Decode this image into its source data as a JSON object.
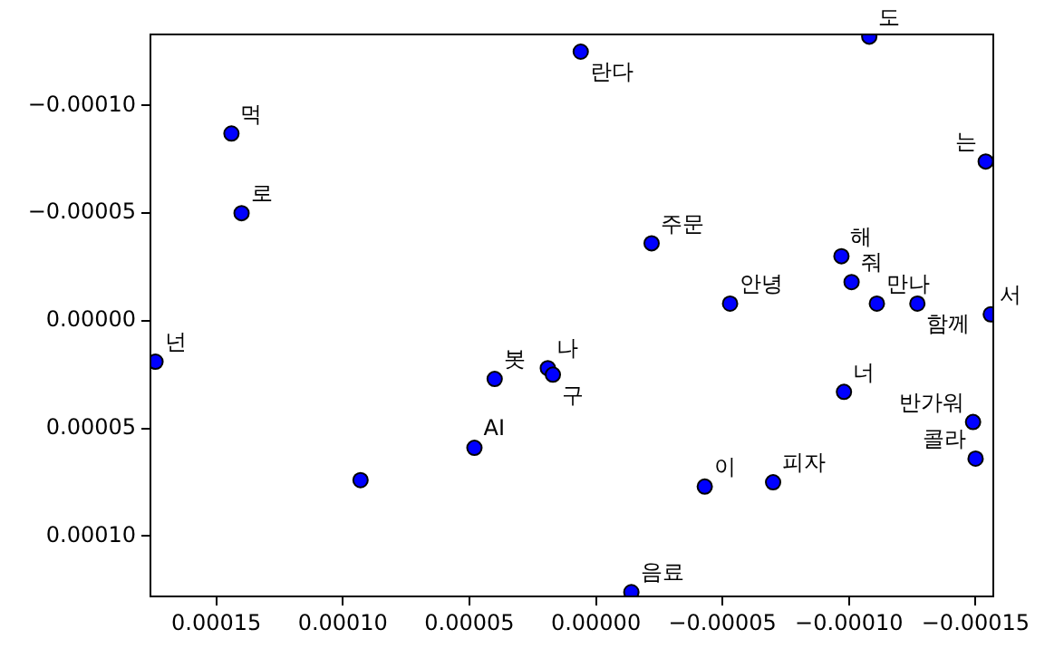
{
  "chart_data": {
    "type": "scatter",
    "marker": "circle",
    "grid": false,
    "legend": false,
    "xlim": [
      0.000176,
      -0.000157
    ],
    "ylim": [
      0.000128,
      -0.000133
    ],
    "xticks": [
      {
        "value": 0.00015,
        "label": "0.00015"
      },
      {
        "value": 0.0001,
        "label": "0.00010"
      },
      {
        "value": 5e-05,
        "label": "0.00005"
      },
      {
        "value": 0,
        "label": "0.00000"
      },
      {
        "value": -5e-05,
        "label": "−0.00005"
      },
      {
        "value": -0.0001,
        "label": "−0.00010"
      },
      {
        "value": -0.00015,
        "label": "−0.00015"
      }
    ],
    "yticks": [
      {
        "value": -0.0001,
        "label": "−0.00010"
      },
      {
        "value": -5e-05,
        "label": "−0.00005"
      },
      {
        "value": 0,
        "label": "0.00000"
      },
      {
        "value": 5e-05,
        "label": "0.00005"
      },
      {
        "value": 0.0001,
        "label": "0.00010"
      }
    ],
    "series": [
      {
        "color": "#0000ff",
        "x": [
          0.000144,
          0.00014,
          6e-06,
          -0.000108,
          -0.000154,
          -2.2e-05,
          -9.7e-05,
          -0.000101,
          -5.3e-05,
          -0.000111,
          -0.000127,
          -0.000156,
          0.000174,
          4e-05,
          1.9e-05,
          1.7e-05,
          -9.8e-05,
          -0.000149,
          -0.00015,
          4.8e-05,
          9.3e-05,
          -4.3e-05,
          -7e-05,
          -1.4e-05
        ],
        "values": [
          -8.7e-05,
          -5e-05,
          -0.000125,
          -0.000132,
          -7.4e-05,
          -3.6e-05,
          -3e-05,
          -1.8e-05,
          -8e-06,
          -8e-06,
          -8e-06,
          -3e-06,
          1.9e-05,
          2.7e-05,
          2.2e-05,
          2.5e-05,
          3.3e-05,
          4.7e-05,
          6.4e-05,
          5.9e-05,
          7.4e-05,
          7.7e-05,
          7.5e-05,
          0.000126
        ]
      }
    ],
    "annotations": [
      {
        "text": "먹",
        "x": 0.000144,
        "y": -8.7e-05
      },
      {
        "text": "로",
        "x": 0.00014,
        "y": -5e-05
      },
      {
        "text": "란다",
        "x": 6e-06,
        "y": -0.000125
      },
      {
        "text": "도",
        "x": -0.000108,
        "y": -0.000132
      },
      {
        "text": "는",
        "x": -0.000154,
        "y": -7.4e-05
      },
      {
        "text": "주문",
        "x": -2.2e-05,
        "y": -3.6e-05
      },
      {
        "text": "해",
        "x": -9.7e-05,
        "y": -3e-05
      },
      {
        "text": "줘",
        "x": -0.000101,
        "y": -1.8e-05
      },
      {
        "text": "안녕",
        "x": -5.3e-05,
        "y": -8e-06
      },
      {
        "text": "만나",
        "x": -0.000111,
        "y": -8e-06
      },
      {
        "text": "함께",
        "x": -0.000127,
        "y": -8e-06
      },
      {
        "text": "서",
        "x": -0.000156,
        "y": -3e-06
      },
      {
        "text": "넌",
        "x": 0.000174,
        "y": 1.9e-05
      },
      {
        "text": "봇",
        "x": 4e-05,
        "y": 2.7e-05
      },
      {
        "text": "나",
        "x": 1.9e-05,
        "y": 2.2e-05
      },
      {
        "text": "구",
        "x": 1.7e-05,
        "y": 2.5e-05
      },
      {
        "text": "너",
        "x": -9.8e-05,
        "y": 3.3e-05
      },
      {
        "text": "반가워",
        "x": -0.000149,
        "y": 4.7e-05
      },
      {
        "text": "콜라",
        "x": -0.00015,
        "y": 6.4e-05
      },
      {
        "text": "AI",
        "x": 4.8e-05,
        "y": 5.9e-05
      },
      {
        "text": "이",
        "x": -4.3e-05,
        "y": 7.7e-05
      },
      {
        "text": "피자",
        "x": -7e-05,
        "y": 7.5e-05
      },
      {
        "text": "음료",
        "x": -1.4e-05,
        "y": 0.000126
      }
    ]
  }
}
